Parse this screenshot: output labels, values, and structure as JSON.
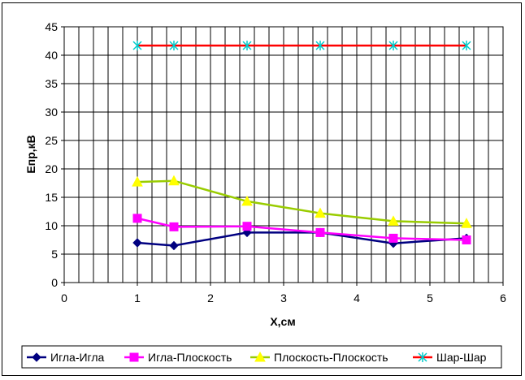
{
  "chart_data": {
    "type": "line",
    "xlabel": "X,см",
    "ylabel": "Епр,кВ",
    "xlim": [
      0,
      6
    ],
    "ylim": [
      0,
      45
    ],
    "xticks": [
      0,
      1,
      2,
      3,
      4,
      5,
      6
    ],
    "yticks": [
      0,
      5,
      10,
      15,
      20,
      25,
      30,
      35,
      40,
      45
    ],
    "xminor_step": 0.2,
    "grid": true,
    "legend_position": "bottom",
    "series": [
      {
        "name": "Игла-Игла",
        "color": "#000080",
        "marker": "diamond",
        "x": [
          1,
          1.5,
          2.5,
          3.5,
          4.5,
          5.5
        ],
        "y": [
          7.0,
          6.5,
          8.8,
          8.8,
          6.9,
          7.8
        ]
      },
      {
        "name": "Игла-Плоскость",
        "color": "#ff00ff",
        "marker": "square",
        "x": [
          1,
          1.5,
          2.5,
          3.5,
          4.5,
          5.5
        ],
        "y": [
          11.3,
          9.8,
          9.9,
          8.8,
          7.8,
          7.5
        ]
      },
      {
        "name": "Плоскость-Плоскость",
        "color": "#99cc00",
        "marker": "triangle",
        "marker_fill": "#ffff00",
        "x": [
          1,
          1.5,
          2.5,
          3.5,
          4.5,
          5.5
        ],
        "y": [
          17.7,
          17.9,
          14.3,
          12.2,
          10.8,
          10.4
        ]
      },
      {
        "name": "Шар-Шар",
        "color": "#ff0000",
        "marker": "star",
        "marker_color": "#00cccc",
        "x": [
          1,
          1.5,
          2.5,
          3.5,
          4.5,
          5.5
        ],
        "y": [
          41.7,
          41.7,
          41.7,
          41.7,
          41.7,
          41.7
        ]
      }
    ]
  }
}
